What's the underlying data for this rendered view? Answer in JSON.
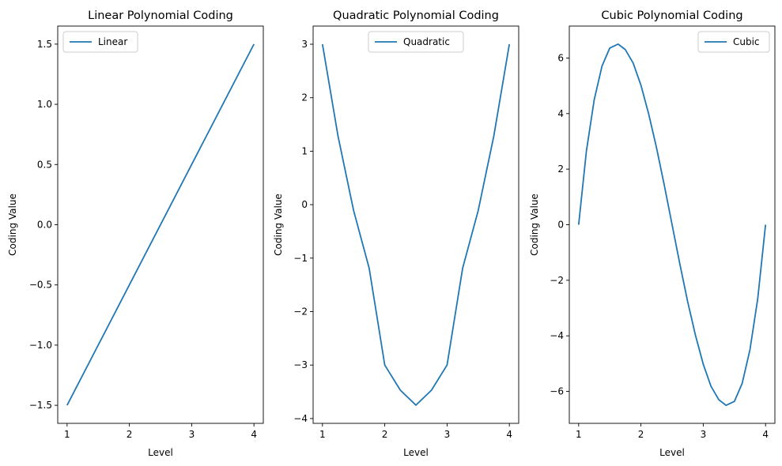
{
  "chart_data": [
    {
      "type": "line",
      "title": "Linear Polynomial Coding",
      "xlabel": "Level",
      "ylabel": "Coding Value",
      "xlim": [
        0.85,
        4.15
      ],
      "ylim": [
        -1.65,
        1.65
      ],
      "xticks": [
        1,
        2,
        3,
        4
      ],
      "yticks": [
        -1.5,
        -1.0,
        -0.5,
        0.0,
        0.5,
        1.0,
        1.5
      ],
      "ytick_labels": [
        "−1.5",
        "−1.0",
        "−0.5",
        "0.0",
        "0.5",
        "1.0",
        "1.5"
      ],
      "legend_loc": "upper-left",
      "series": [
        {
          "name": "Linear",
          "color": "#1f77b4",
          "x": [
            1,
            4
          ],
          "y": [
            -1.5,
            1.5
          ]
        }
      ]
    },
    {
      "type": "line",
      "title": "Quadratic Polynomial Coding",
      "xlabel": "Level",
      "ylabel": "Coding Value",
      "xlim": [
        0.85,
        4.15
      ],
      "ylim": [
        -4.09,
        3.34
      ],
      "xticks": [
        1,
        2,
        3,
        4
      ],
      "yticks": [
        -4,
        -3,
        -2,
        -1,
        0,
        1,
        2,
        3
      ],
      "ytick_labels": [
        "−4",
        "−3",
        "−2",
        "−1",
        "0",
        "1",
        "2",
        "3"
      ],
      "legend_loc": "upper-center",
      "series": [
        {
          "name": "Quadratic",
          "color": "#1f77b4",
          "x": [
            1.0,
            1.25,
            1.5,
            1.75,
            2.0,
            2.25,
            2.5,
            2.75,
            3.0,
            3.25,
            3.5,
            3.75,
            4.0
          ],
          "y": [
            3.0,
            1.28,
            -0.11,
            -1.19,
            -3.0,
            -3.47,
            -3.75,
            -3.47,
            -3.0,
            -1.19,
            -0.11,
            1.28,
            3.0
          ]
        }
      ]
    },
    {
      "type": "line",
      "title": "Cubic Polynomial Coding",
      "xlabel": "Level",
      "ylabel": "Coding Value",
      "xlim": [
        0.85,
        4.15
      ],
      "ylim": [
        -7.15,
        7.15
      ],
      "xticks": [
        1,
        2,
        3,
        4
      ],
      "yticks": [
        -6,
        -4,
        -2,
        0,
        2,
        4,
        6
      ],
      "ytick_labels": [
        "−6",
        "−4",
        "−2",
        "0",
        "2",
        "4",
        "6"
      ],
      "legend_loc": "upper-right",
      "series": [
        {
          "name": "Cubic",
          "color": "#1f77b4",
          "x": [
            1.0,
            1.125,
            1.25,
            1.375,
            1.5,
            1.634,
            1.75,
            1.875,
            2.0,
            2.125,
            2.25,
            2.375,
            2.5,
            2.625,
            2.75,
            2.875,
            3.0,
            3.125,
            3.25,
            3.366,
            3.5,
            3.625,
            3.75,
            3.875,
            4.0
          ],
          "y": [
            0.0,
            2.66,
            4.5,
            5.71,
            6.36,
            6.5,
            6.3,
            5.82,
            5.02,
            3.98,
            2.77,
            1.42,
            0.0,
            -1.42,
            -2.77,
            -3.98,
            -5.02,
            -5.82,
            -6.3,
            -6.5,
            -6.36,
            -5.71,
            -4.5,
            -2.66,
            0.0
          ]
        }
      ]
    }
  ]
}
